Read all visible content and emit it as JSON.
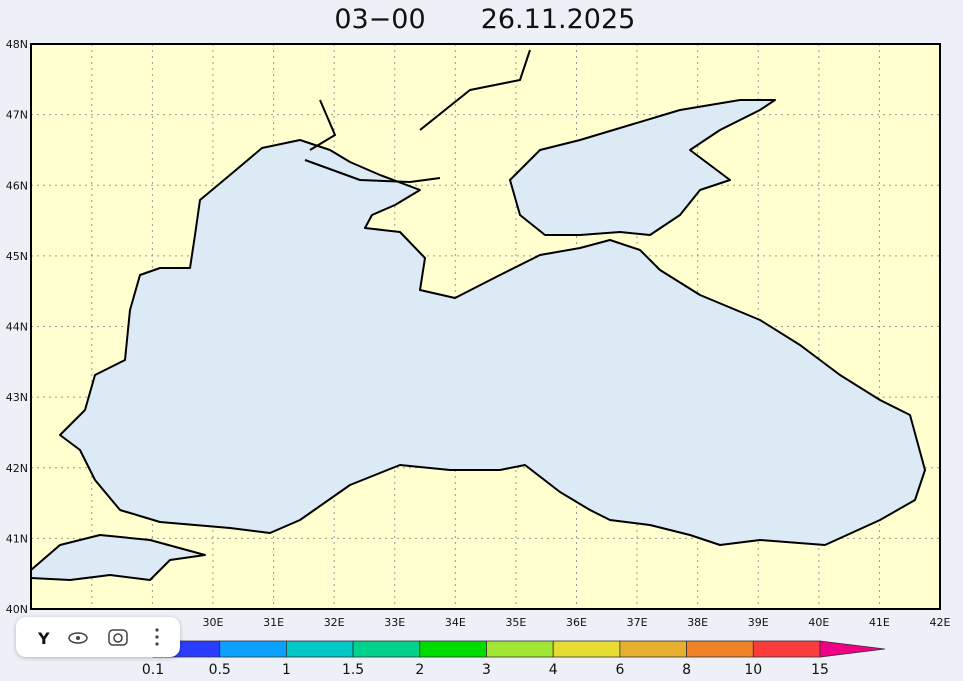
{
  "title": {
    "time": "03−00",
    "date": "26.11.2025"
  },
  "map": {
    "lat_labels": [
      "40N",
      "41N",
      "42N",
      "43N",
      "44N",
      "45N",
      "46N",
      "47N",
      "48N"
    ],
    "lon_labels": [
      "30E",
      "31E",
      "32E",
      "33E",
      "34E",
      "35E",
      "36E",
      "37E",
      "38E",
      "39E",
      "40E",
      "41E",
      "42E"
    ]
  },
  "legend": {
    "labels": [
      "0.1",
      "0.5",
      "1",
      "1.5",
      "2",
      "3",
      "4",
      "6",
      "8",
      "10",
      "15"
    ],
    "colors": [
      "#2a3cff",
      "#0aa0ff",
      "#00c8c8",
      "#00d28c",
      "#00dc00",
      "#a0e632",
      "#e6dc32",
      "#e6af2d",
      "#f08228",
      "#fa3c3c",
      "#f00082"
    ]
  }
}
